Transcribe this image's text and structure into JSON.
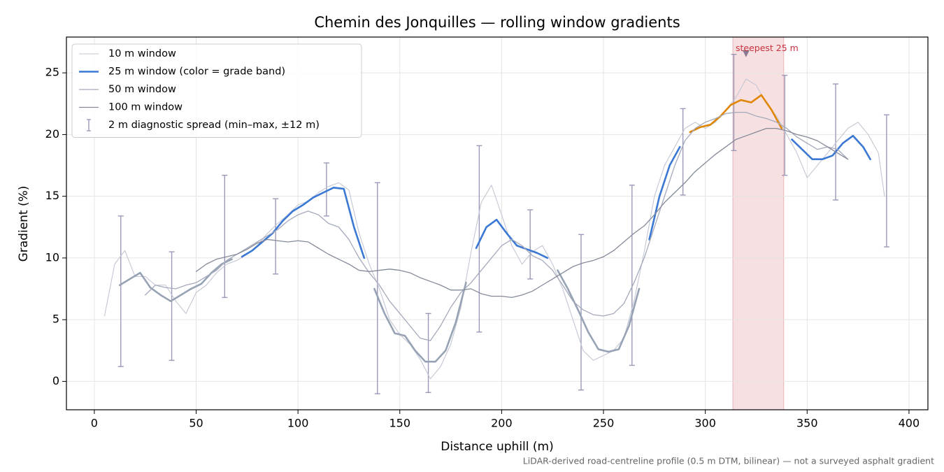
{
  "chart_data": {
    "type": "line",
    "title": "Chemin des Jonquilles — rolling window gradients",
    "x_label": "Distance uphill (m)",
    "y_label": "Gradient (%)",
    "footnote": "LiDAR-derived road-centreline profile (0.5 m DTM, bilinear) — not a surveyed asphalt gradient",
    "xlim": [
      -13.7,
      409.3
    ],
    "ylim": [
      -2.3,
      27.9
    ],
    "xticks": [
      0,
      50,
      100,
      150,
      200,
      250,
      300,
      350,
      400
    ],
    "yticks": [
      0,
      5,
      10,
      15,
      20,
      25
    ],
    "grid": true,
    "legend": "upper left",
    "series": [
      {
        "name": "10 m window",
        "color": "#c3c7d4",
        "width": 1.1,
        "x": [
          5,
          10,
          15,
          20,
          25,
          30,
          35,
          40,
          45,
          50,
          55,
          60,
          65,
          70,
          75,
          80,
          85,
          90,
          95,
          100,
          105,
          110,
          115,
          120,
          125,
          130,
          135,
          140,
          145,
          150,
          155,
          160,
          165,
          170,
          175,
          180,
          185,
          190,
          195,
          200,
          205,
          210,
          215,
          220,
          225,
          230,
          235,
          240,
          245,
          250,
          255,
          260,
          265,
          270,
          275,
          280,
          285,
          290,
          295,
          300,
          305,
          310,
          315,
          320,
          325,
          330,
          335,
          340,
          345,
          350,
          355,
          360,
          365,
          370,
          375,
          380,
          385,
          388
        ],
        "values": [
          5.3,
          9.5,
          10.6,
          8.5,
          8.5,
          7.8,
          7.8,
          6.5,
          5.5,
          7.2,
          7.8,
          8.8,
          9.5,
          9.8,
          10.3,
          11.0,
          12.0,
          12.8,
          13.5,
          14.3,
          14.6,
          15.3,
          15.8,
          16.1,
          15.5,
          12.0,
          9.5,
          7.5,
          5.0,
          3.8,
          3.0,
          1.8,
          0.2,
          1.2,
          3.0,
          6.0,
          10.5,
          14.5,
          15.9,
          13.5,
          11.0,
          9.5,
          10.5,
          11.0,
          9.5,
          7.5,
          5.0,
          2.5,
          1.7,
          2.1,
          2.5,
          3.5,
          6.5,
          10.5,
          15.0,
          17.5,
          19.0,
          20.5,
          21.0,
          20.5,
          21.0,
          22.0,
          23.0,
          24.5,
          24.0,
          22.5,
          21.5,
          20.0,
          18.5,
          16.5,
          17.5,
          18.5,
          19.5,
          20.5,
          21.0,
          20.0,
          18.5,
          15.0
        ]
      },
      {
        "name": "25 m window (color = grade band)",
        "color": "#3b78d4",
        "width": 2.6,
        "grade_bands": [
          {
            "below": 10,
            "color": "#97a3b4"
          },
          {
            "below": 20,
            "color": "#3b78d4"
          },
          {
            "color": "#e08600"
          }
        ],
        "x": [
          12.5,
          17.5,
          22.5,
          27.5,
          32.5,
          37.5,
          42.5,
          47.5,
          52.5,
          57.5,
          62.5,
          67.5,
          72.5,
          77.5,
          82.5,
          87.5,
          92.5,
          97.5,
          102.5,
          107.5,
          112.5,
          117.5,
          122.5,
          127.5,
          132.5,
          137.5,
          142.5,
          147.5,
          152.5,
          157.5,
          162.5,
          167.5,
          172.5,
          177.5,
          182.5,
          187.5,
          192.5,
          197.5,
          202.5,
          207.5,
          212.5,
          217.5,
          222.5,
          227.5,
          232.5,
          237.5,
          242.5,
          247.5,
          252.5,
          257.5,
          262.5,
          267.5,
          272.5,
          277.5,
          282.5,
          287.5,
          292.5,
          297.5,
          302.5,
          307.5,
          312.5,
          317.5,
          322.5,
          327.5,
          332.5,
          337.5,
          342.5,
          347.5,
          352.5,
          357.5,
          362.5,
          367.5,
          372.5,
          377.5,
          381
        ],
        "values": [
          7.8,
          8.3,
          8.8,
          7.6,
          7.0,
          6.5,
          7.0,
          7.5,
          7.9,
          8.8,
          9.5,
          9.9,
          10.1,
          10.6,
          11.3,
          12.0,
          13.0,
          13.8,
          14.3,
          14.9,
          15.3,
          15.7,
          15.6,
          12.5,
          10.0,
          7.5,
          5.5,
          3.9,
          3.7,
          2.5,
          1.6,
          1.6,
          2.5,
          4.8,
          8.0,
          10.8,
          12.5,
          13.1,
          12.0,
          11.0,
          10.7,
          10.4,
          10.0,
          9.0,
          7.5,
          5.8,
          4.0,
          2.6,
          2.4,
          2.6,
          4.5,
          7.5,
          11.5,
          15.0,
          17.5,
          19.0,
          20.2,
          20.6,
          20.8,
          21.5,
          22.4,
          22.8,
          22.6,
          23.2,
          22.0,
          20.5,
          19.6,
          18.8,
          18.0,
          18.0,
          18.3,
          19.3,
          19.9,
          19.0,
          18.0
        ]
      },
      {
        "name": "50 m window",
        "color": "#a4aabb",
        "width": 1.3,
        "x": [
          25,
          30,
          35,
          40,
          45,
          50,
          55,
          60,
          65,
          70,
          75,
          80,
          85,
          90,
          95,
          100,
          105,
          110,
          115,
          120,
          125,
          130,
          135,
          140,
          145,
          150,
          155,
          160,
          165,
          170,
          175,
          180,
          185,
          190,
          195,
          200,
          205,
          210,
          215,
          220,
          225,
          230,
          235,
          240,
          245,
          250,
          255,
          260,
          265,
          270,
          275,
          280,
          285,
          290,
          295,
          300,
          305,
          310,
          315,
          320,
          325,
          330,
          335,
          340,
          345,
          350,
          355,
          360,
          365,
          370
        ],
        "values": [
          7.0,
          7.8,
          7.6,
          7.5,
          7.8,
          8.0,
          8.5,
          9.0,
          9.8,
          10.3,
          10.8,
          11.3,
          11.8,
          12.3,
          13.0,
          13.5,
          13.8,
          13.5,
          12.8,
          12.5,
          11.5,
          10.0,
          8.8,
          7.8,
          6.5,
          5.5,
          4.5,
          3.5,
          3.3,
          4.5,
          6.0,
          7.2,
          8.0,
          9.0,
          10.0,
          11.0,
          11.5,
          11.0,
          10.2,
          9.8,
          9.0,
          7.8,
          6.5,
          5.8,
          5.4,
          5.3,
          5.5,
          6.3,
          8.0,
          10.0,
          12.5,
          15.0,
          17.5,
          19.5,
          20.5,
          21.0,
          21.3,
          21.7,
          21.8,
          21.8,
          21.5,
          21.3,
          21.0,
          20.5,
          19.8,
          19.3,
          18.8,
          19.0,
          18.8,
          18.0
        ]
      },
      {
        "name": "100 m window",
        "color": "#848a99",
        "width": 1.3,
        "x": [
          50,
          55,
          60,
          65,
          70,
          75,
          80,
          85,
          90,
          95,
          100,
          105,
          110,
          115,
          120,
          125,
          130,
          135,
          140,
          145,
          150,
          155,
          160,
          165,
          170,
          175,
          180,
          185,
          190,
          195,
          200,
          205,
          210,
          215,
          220,
          225,
          230,
          235,
          240,
          245,
          250,
          255,
          260,
          265,
          270,
          275,
          280,
          285,
          290,
          295,
          300,
          305,
          310,
          315,
          320,
          325,
          330,
          335,
          340,
          345,
          350,
          355,
          360,
          365,
          370
        ],
        "values": [
          8.9,
          9.5,
          9.9,
          10.1,
          10.3,
          10.7,
          11.2,
          11.5,
          11.4,
          11.3,
          11.4,
          11.3,
          10.8,
          10.3,
          9.9,
          9.5,
          9.0,
          8.9,
          9.0,
          9.1,
          9.0,
          8.8,
          8.4,
          8.1,
          7.8,
          7.4,
          7.4,
          7.5,
          7.1,
          6.9,
          6.9,
          6.8,
          7.0,
          7.3,
          7.8,
          8.3,
          8.8,
          9.3,
          9.6,
          9.8,
          10.1,
          10.6,
          11.3,
          12.0,
          12.6,
          13.5,
          14.5,
          15.3,
          16.1,
          17.0,
          17.7,
          18.4,
          19.0,
          19.6,
          19.9,
          20.2,
          20.5,
          20.5,
          20.3,
          20.0,
          19.8,
          19.5,
          19.0,
          18.5,
          18.0
        ]
      }
    ],
    "errorbars": {
      "name": "2 m diagnostic spread (min–max, ±12 m)",
      "color": "#9a9ab8",
      "x": [
        13,
        38,
        64,
        89,
        114,
        139,
        164,
        189,
        214,
        239,
        264,
        289,
        314,
        339,
        364,
        389
      ],
      "low": [
        1.2,
        1.7,
        6.8,
        8.7,
        13.4,
        -1.0,
        -0.9,
        4.0,
        8.3,
        -0.7,
        1.3,
        15.1,
        18.7,
        16.7,
        14.7,
        10.9
      ],
      "high": [
        13.4,
        10.5,
        16.7,
        14.8,
        17.7,
        16.1,
        5.5,
        19.1,
        13.9,
        11.9,
        15.9,
        22.1,
        26.5,
        24.8,
        24.1,
        21.6
      ]
    },
    "highlight": {
      "label": "steepest 25 m",
      "color": "#c8303c",
      "xrange": [
        313.5,
        338.5
      ],
      "marker": [
        320,
        26.5
      ]
    }
  }
}
